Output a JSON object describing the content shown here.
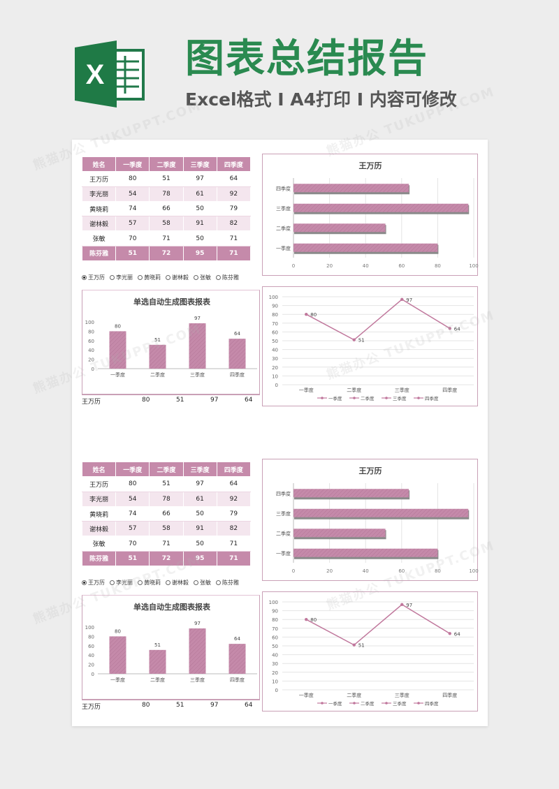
{
  "header": {
    "logo_letter": "X",
    "title": "图表总结报告",
    "subtitle": "Excel格式 I A4打印 I 内容可修改"
  },
  "colors": {
    "brand_green": "#2a8a50",
    "accent_pink": "#c58aaa",
    "line_pink": "#c0779c"
  },
  "watermark": "熊猫办公 TUKUPPT.COM",
  "table": {
    "headers": [
      "姓名",
      "一季度",
      "二季度",
      "三季度",
      "四季度"
    ],
    "rows": [
      [
        "王万历",
        "80",
        "51",
        "97",
        "64"
      ],
      [
        "李光丽",
        "54",
        "78",
        "61",
        "92"
      ],
      [
        "黄晓莉",
        "74",
        "66",
        "50",
        "79"
      ],
      [
        "谢林毅",
        "57",
        "58",
        "91",
        "82"
      ],
      [
        "张敏",
        "70",
        "71",
        "50",
        "71"
      ]
    ],
    "blocks_last_row": [
      [
        "陈芬雅",
        "51",
        "72",
        "95",
        "71"
      ],
      [
        "陈芬雅",
        "51",
        "72",
        "95",
        "71"
      ]
    ]
  },
  "radios": [
    {
      "label": "王万历",
      "selected": true
    },
    {
      "label": "李光丽",
      "selected": false
    },
    {
      "label": "黄晓莉",
      "selected": false
    },
    {
      "label": "谢林毅",
      "selected": false
    },
    {
      "label": "张敏",
      "selected": false
    },
    {
      "label": "陈芬雅",
      "selected": false
    }
  ],
  "value_row": {
    "name": "王万历",
    "values": [
      "80",
      "51",
      "97",
      "64"
    ]
  },
  "chart_data": [
    {
      "type": "bar",
      "orientation": "horizontal",
      "title": "王万历",
      "categories": [
        "一季度",
        "二季度",
        "三季度",
        "四季度"
      ],
      "values": [
        80,
        51,
        97,
        64
      ],
      "xlim": [
        0,
        100
      ],
      "xticks": [
        0,
        20,
        40,
        60,
        80,
        100
      ],
      "grid": true
    },
    {
      "type": "bar",
      "orientation": "vertical",
      "title": "单选自动生成图表报表",
      "categories": [
        "一季度",
        "二季度",
        "三季度",
        "四季度"
      ],
      "values": [
        80,
        51,
        97,
        64
      ],
      "ylim": [
        0,
        100
      ],
      "yticks": [
        0,
        20,
        40,
        60,
        80,
        100
      ],
      "data_labels": true
    },
    {
      "type": "line",
      "title": "",
      "categories": [
        "一季度",
        "二季度",
        "三季度",
        "四季度"
      ],
      "values": [
        80,
        51,
        97,
        64
      ],
      "ylim": [
        0,
        100
      ],
      "yticks": [
        0,
        10,
        20,
        30,
        40,
        50,
        60,
        70,
        80,
        90,
        100
      ],
      "grid": true,
      "legend": [
        "一季度",
        "二季度",
        "三季度",
        "四季度"
      ],
      "legend_position": "bottom",
      "data_labels": true
    }
  ]
}
